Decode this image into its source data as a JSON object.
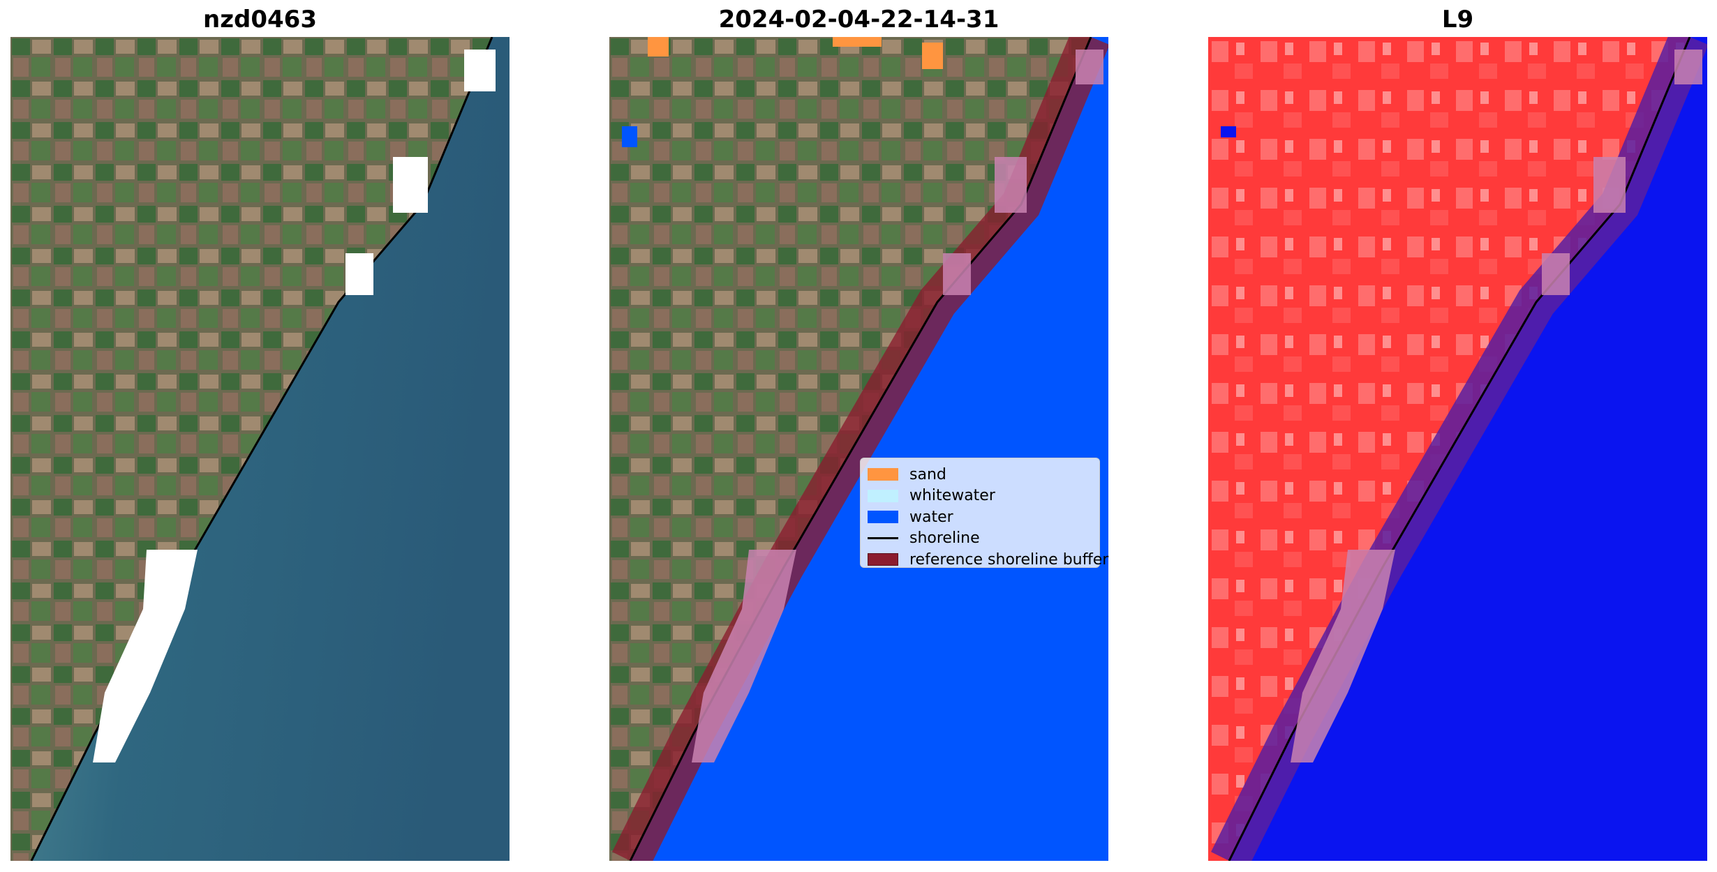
{
  "panels": [
    {
      "title": "nzd0463"
    },
    {
      "title": "2024-02-04-22-14-31"
    },
    {
      "title": "L9"
    }
  ],
  "legend": {
    "items": [
      {
        "label": "sand",
        "color": "#ff9540"
      },
      {
        "label": "whitewater",
        "color": "#c0f0ff"
      },
      {
        "label": "water",
        "color": "#0055ff"
      },
      {
        "label": "shoreline",
        "color": "#000000"
      },
      {
        "label": "reference shoreline buffer",
        "color": "#8b1c2e"
      }
    ]
  },
  "colors": {
    "sea_rgb": "#2e5f7a",
    "land_rgb": "#6f6e52",
    "water_class": "#0055ff",
    "land_index": "#ff3a3a",
    "water_index": "#0a14f0",
    "buffer": "#8b1c2e"
  }
}
